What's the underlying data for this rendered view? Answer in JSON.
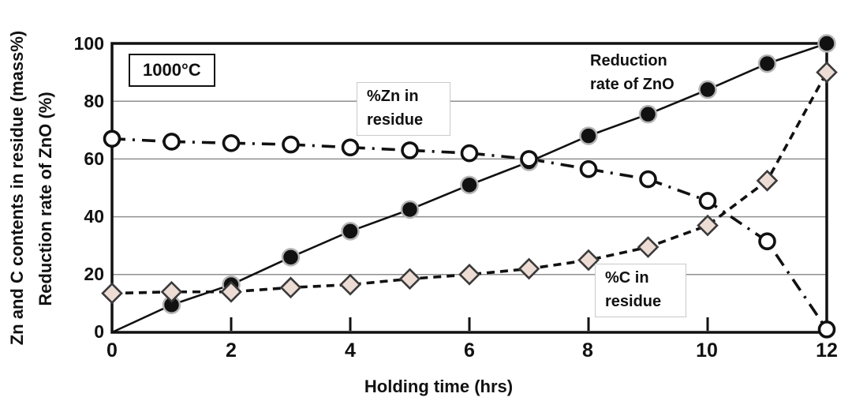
{
  "figure": {
    "temperature_label": "1000°C",
    "xlabel": "Holding time (hrs)",
    "ylabel_line1": "Zn and C contents in residue (mass%)",
    "ylabel_line2": "Reduction rate of ZnO (%)"
  },
  "annotations": {
    "reduction": {
      "line1": "Reduction",
      "line2": "rate of ZnO"
    },
    "zn": {
      "line1": "%Zn in",
      "line2": "residue"
    },
    "c": {
      "line1": "%C in",
      "line2": "residue"
    }
  },
  "chart_data": {
    "type": "line",
    "title": "",
    "xlabel": "Holding time (hrs)",
    "ylabel": "Zn and C contents in residue (mass%) / Reduction rate of ZnO (%)",
    "xlim": [
      0,
      12
    ],
    "ylim": [
      0,
      100
    ],
    "x_tick_labels": [
      "0",
      "2",
      "4",
      "6",
      "8",
      "10",
      "12"
    ],
    "y_tick_labels": [
      "100",
      "80",
      "60",
      "40",
      "20",
      "0"
    ],
    "x_tick_marks": [
      2,
      4,
      6,
      8,
      10
    ],
    "gridlines_y": [
      20,
      40,
      60,
      80
    ],
    "grid_color": "#8f8f8f",
    "frame_color": "#111111",
    "legend_position": "inline-annotations",
    "series": [
      {
        "name": "Reduction rate of ZnO",
        "marker": "filled-circle",
        "line": "solid",
        "color": "#111111",
        "marker_fill": "#111111",
        "marker_edge": "#b5b5b5",
        "skip_first_marker": true,
        "x": [
          0,
          1,
          2,
          3,
          4,
          5,
          6,
          7,
          8,
          9,
          10,
          11,
          12
        ],
        "values": [
          0,
          9.5,
          16.5,
          26,
          35,
          42.5,
          51,
          59,
          68,
          75.5,
          84,
          93,
          100
        ]
      },
      {
        "name": "%Zn in residue",
        "marker": "open-circle",
        "line": "dash-dot",
        "color": "#111111",
        "marker_fill": "#ffffff",
        "marker_edge": "#111111",
        "skip_first_marker": false,
        "x": [
          0,
          1,
          2,
          3,
          4,
          5,
          6,
          7,
          8,
          9,
          10,
          11,
          12
        ],
        "values": [
          67,
          66,
          65.5,
          65,
          64,
          63,
          62,
          60,
          56.5,
          53,
          45.5,
          31.5,
          1
        ]
      },
      {
        "name": "%C in residue",
        "marker": "diamond",
        "line": "dashed",
        "color": "#111111",
        "marker_fill": "#ecdcd4",
        "marker_edge": "#3a3a3a",
        "skip_first_marker": false,
        "x": [
          0,
          1,
          2,
          3,
          4,
          5,
          6,
          7,
          8,
          9,
          10,
          11,
          12
        ],
        "values": [
          13.5,
          14,
          14,
          15.5,
          16.5,
          18.5,
          20,
          22,
          25,
          29.5,
          37,
          52.5,
          90
        ]
      }
    ]
  }
}
